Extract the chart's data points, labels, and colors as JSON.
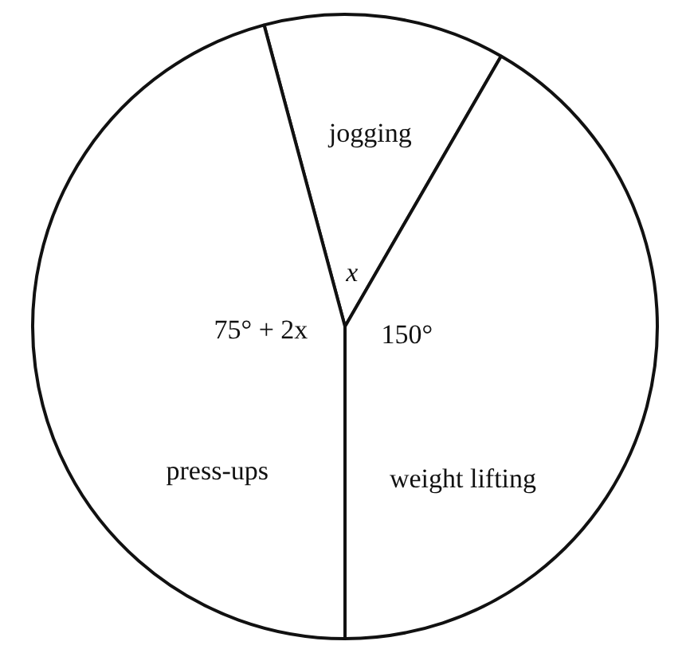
{
  "chart_data": {
    "type": "pie",
    "categories": [
      "jogging",
      "weight lifting",
      "press-ups"
    ],
    "values": [
      12.5,
      41.67,
      45.83
    ],
    "annotations": [
      "x",
      "150°",
      "75° + 2x"
    ],
    "colors": [
      "#ffffff",
      "#ffffff",
      "#ffffff"
    ],
    "legend": false
  }
}
